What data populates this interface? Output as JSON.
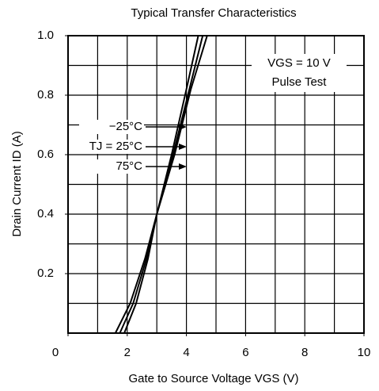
{
  "chart_data": {
    "type": "line",
    "title": "Typical Transfer Characteristics",
    "x_label": "Gate to Source Voltage VGS (V)",
    "y_label": "Drain Current ID (A)",
    "annotations": [
      "VGS = 10 V",
      "Pulse Test"
    ],
    "xlim": [
      0,
      10
    ],
    "ylim": [
      0,
      1.0
    ],
    "xticks": [
      0,
      2,
      4,
      6,
      8,
      10
    ],
    "yticks": [
      {
        "value": 0.2,
        "label": "0.2"
      },
      {
        "value": 0.4,
        "label": "0.4"
      },
      {
        "value": 0.6,
        "label": "0.6"
      },
      {
        "value": 0.8,
        "label": "0.8"
      },
      {
        "value": 1.0,
        "label": "1.0"
      }
    ],
    "xgrid": [
      1,
      2,
      3,
      4,
      5,
      6,
      7,
      8,
      9
    ],
    "ygrid": [
      0.1,
      0.2,
      0.3,
      0.4,
      0.5,
      0.6,
      0.7,
      0.8,
      0.9
    ],
    "series": [
      {
        "name": "−25°C",
        "color": "#000000",
        "x": [
          1.9,
          2.3,
          2.7,
          3.0,
          3.5,
          4.0,
          4.4
        ],
        "values": [
          0,
          0.1,
          0.25,
          0.4,
          0.6,
          0.82,
          1.0
        ]
      },
      {
        "name": "TJ = 25°C",
        "color": "#000000",
        "x": [
          1.75,
          2.2,
          2.65,
          3.0,
          3.55,
          4.1,
          4.55
        ],
        "values": [
          0,
          0.1,
          0.25,
          0.4,
          0.6,
          0.82,
          1.0
        ]
      },
      {
        "name": "75°C",
        "color": "#000000",
        "x": [
          1.6,
          2.1,
          2.6,
          3.0,
          3.6,
          4.15,
          4.7
        ],
        "values": [
          0,
          0.1,
          0.25,
          0.4,
          0.6,
          0.82,
          1.0
        ]
      }
    ]
  }
}
